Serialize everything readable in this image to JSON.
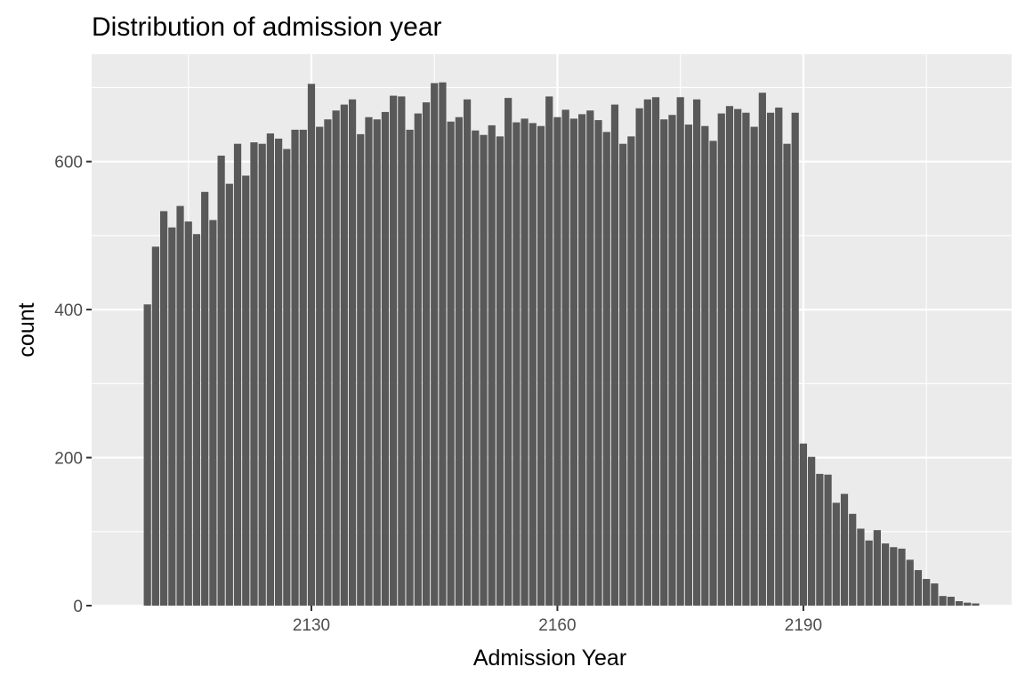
{
  "chart_data": {
    "type": "bar",
    "title": "Distribution of admission year",
    "xlabel": "Admission Year",
    "ylabel": "count",
    "x_ticks": [
      2130,
      2160,
      2190
    ],
    "y_ticks": [
      0,
      200,
      400,
      600
    ],
    "xlim": [
      2103.2,
      2215.4
    ],
    "ylim": [
      0,
      745
    ],
    "grid": true,
    "colors": {
      "panel": "#ebebeb",
      "bar": "#595959",
      "gridline": "#ffffff"
    },
    "x": [
      2110,
      2111,
      2112,
      2113,
      2114,
      2115,
      2116,
      2117,
      2118,
      2119,
      2120,
      2121,
      2122,
      2123,
      2124,
      2125,
      2126,
      2127,
      2128,
      2129,
      2130,
      2131,
      2132,
      2133,
      2134,
      2135,
      2136,
      2137,
      2138,
      2139,
      2140,
      2141,
      2142,
      2143,
      2144,
      2145,
      2146,
      2147,
      2148,
      2149,
      2150,
      2151,
      2152,
      2153,
      2154,
      2155,
      2156,
      2157,
      2158,
      2159,
      2160,
      2161,
      2162,
      2163,
      2164,
      2165,
      2166,
      2167,
      2168,
      2169,
      2170,
      2171,
      2172,
      2173,
      2174,
      2175,
      2176,
      2177,
      2178,
      2179,
      2180,
      2181,
      2182,
      2183,
      2184,
      2185,
      2186,
      2187,
      2188,
      2189,
      2190,
      2191,
      2192,
      2193,
      2194,
      2195,
      2196,
      2197,
      2198,
      2199,
      2200,
      2201,
      2202,
      2203,
      2204,
      2205,
      2206,
      2207,
      2208,
      2209,
      2210,
      2211
    ],
    "values": [
      407,
      485,
      533,
      511,
      540,
      519,
      502,
      559,
      521,
      608,
      570,
      624,
      581,
      626,
      624,
      638,
      631,
      617,
      643,
      643,
      705,
      647,
      657,
      669,
      677,
      684,
      637,
      660,
      657,
      667,
      689,
      688,
      643,
      665,
      680,
      706,
      707,
      654,
      660,
      684,
      642,
      636,
      649,
      634,
      686,
      653,
      658,
      652,
      648,
      688,
      660,
      670,
      658,
      664,
      669,
      656,
      640,
      677,
      624,
      634,
      672,
      684,
      687,
      657,
      663,
      687,
      650,
      684,
      648,
      628,
      665,
      675,
      671,
      666,
      647,
      693,
      666,
      673,
      624,
      666,
      219,
      201,
      178,
      177,
      139,
      151,
      124,
      104,
      88,
      102,
      84,
      79,
      77,
      62,
      48,
      36,
      30,
      13,
      12,
      6,
      4,
      3
    ]
  }
}
